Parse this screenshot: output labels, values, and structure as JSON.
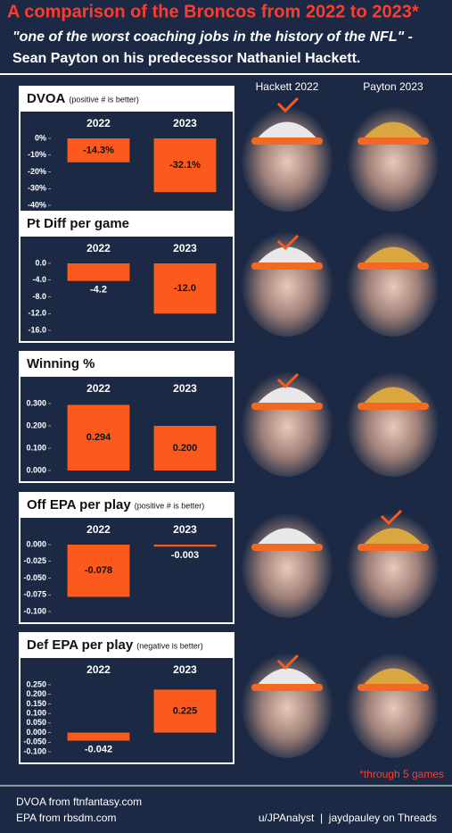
{
  "header": {
    "title": "A comparison of the Broncos from 2022 to 2023*",
    "subtitle": [
      "\"one of the worst coaching jobs in the history of the NFL\" -",
      "Sean Payton on his predecessor Nathaniel Hackett."
    ],
    "columns": [
      "Hackett 2022",
      "Payton 2023"
    ]
  },
  "chart_data": [
    {
      "type": "bar",
      "title": "DVOA",
      "subtitle": "(positive # is better)",
      "categories": [
        "2022",
        "2023"
      ],
      "values": [
        -14.3,
        -32.1
      ],
      "value_labels": [
        "-14.3%",
        "-32.1%"
      ],
      "color": "#fc5a1c",
      "ylim": [
        -40,
        0
      ],
      "yticks": [
        {
          "value": 0,
          "label": "0%"
        },
        {
          "value": -10,
          "label": "-10%"
        },
        {
          "value": -20,
          "label": "-20%"
        },
        {
          "value": -30,
          "label": "-30%"
        },
        {
          "value": -40,
          "label": "-40%"
        }
      ]
    },
    {
      "type": "bar",
      "title": "Pt Diff per game",
      "categories": [
        "2022",
        "2023"
      ],
      "values": [
        -4.2,
        -12
      ],
      "value_labels": [
        "-4.2",
        "-12.0"
      ],
      "color": "#fc5a1c",
      "ylim": [
        -16,
        0
      ],
      "yticks": [
        {
          "value": 0,
          "label": "0.0"
        },
        {
          "value": -4,
          "label": "-4.0"
        },
        {
          "value": -8,
          "label": "-8.0"
        },
        {
          "value": -12,
          "label": "-12.0"
        },
        {
          "value": -16,
          "label": "-16.0"
        }
      ]
    },
    {
      "type": "bar",
      "title": "Winning %",
      "categories": [
        "2022",
        "2023"
      ],
      "values": [
        0.294,
        0.2
      ],
      "value_labels": [
        "0.294",
        "0.200"
      ],
      "color": "#fc5a1c",
      "ylim": [
        0,
        0.3
      ],
      "yticks": [
        {
          "value": 0.3,
          "label": "0.300"
        },
        {
          "value": 0.2,
          "label": "0.200"
        },
        {
          "value": 0.1,
          "label": "0.100"
        },
        {
          "value": 0,
          "label": "0.000"
        }
      ]
    },
    {
      "type": "bar",
      "title": "Off EPA per play",
      "subtitle": "(positive # is better)",
      "categories": [
        "2022",
        "2023"
      ],
      "values": [
        -0.078,
        -0.003
      ],
      "color": "#fc5a1c",
      "ylim": [
        -0.1,
        0
      ],
      "yticks": [
        {
          "value": 0,
          "label": "0.000"
        },
        -0.025,
        {
          "value": -0.05,
          "label": "-0.050"
        },
        -0.075,
        {
          "value": -0.1,
          "label": "-0.100"
        }
      ]
    },
    {
      "type": "bar",
      "title": "Def EPA per play",
      "subtitle": "(negative is better)",
      "categories": [
        "2022",
        "2023"
      ],
      "values": [
        -0.042,
        0.225
      ],
      "color": "#fc5a1c",
      "ylim": [
        -0.1,
        0.25
      ],
      "yticks": [
        {
          "value": 0.25,
          "label": "0.250"
        },
        {
          "value": 0.2,
          "label": "0.200"
        },
        {
          "value": 0.15,
          "label": "0.150"
        },
        {
          "value": 0.1,
          "label": "0.100"
        },
        {
          "value": 0.05,
          "label": "0.050"
        },
        {
          "value": 0,
          "label": "0.000"
        },
        {
          "value": -0.05,
          "label": "-0.050"
        },
        {
          "value": -0.1,
          "label": "-0.100"
        }
      ]
    }
  ],
  "footer": {
    "note": "*through 5 games",
    "sources": [
      "DVOA from ftnfantasy.com",
      "EPA from rbsdm.com"
    ],
    "credit": "u/JPAnalyst  |  jaydpauley on Threads"
  }
}
